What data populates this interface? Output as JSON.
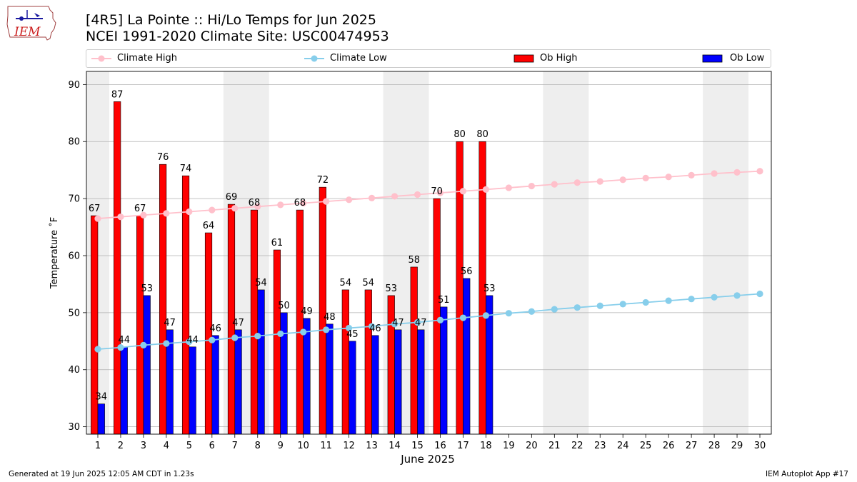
{
  "header": {
    "title_line1": "[4R5] La Pointe :: Hi/Lo Temps for Jun 2025",
    "title_line2": "NCEI 1991-2020 Climate Site: USC00474953",
    "logo_text": "IEM"
  },
  "legend": {
    "items": [
      {
        "label": "Climate High",
        "color": "#ffc0cb",
        "kind": "line"
      },
      {
        "label": "Climate Low",
        "color": "#87ceeb",
        "kind": "line"
      },
      {
        "label": "Ob High",
        "color": "#ff0000",
        "kind": "bar"
      },
      {
        "label": "Ob Low",
        "color": "#0000ff",
        "kind": "bar"
      }
    ]
  },
  "chart_data": {
    "type": "bar",
    "xlabel": "June 2025",
    "ylabel": "Temperature ˚F",
    "ylim": [
      28.7,
      92.3
    ],
    "yticks": [
      30,
      40,
      50,
      60,
      70,
      80,
      90
    ],
    "days": [
      1,
      2,
      3,
      4,
      5,
      6,
      7,
      8,
      9,
      10,
      11,
      12,
      13,
      14,
      15,
      16,
      17,
      18,
      19,
      20,
      21,
      22,
      23,
      24,
      25,
      26,
      27,
      28,
      29,
      30
    ],
    "weekend_shading": [
      [
        1,
        1
      ],
      [
        7,
        8
      ],
      [
        14,
        15
      ],
      [
        21,
        22
      ],
      [
        28,
        29
      ]
    ],
    "grid": "horizontal",
    "series": [
      {
        "name": "Ob High",
        "color": "#ff0000",
        "values": [
          67,
          87,
          67,
          76,
          74,
          64,
          69,
          68,
          61,
          68,
          72,
          54,
          54,
          53,
          58,
          70,
          80,
          80
        ],
        "value_labels": [
          "67",
          "87",
          "67",
          "76",
          "74",
          "64",
          "69",
          "68",
          "61",
          "68",
          "72",
          "54",
          "54",
          "53",
          "58",
          "70",
          "80",
          "80"
        ]
      },
      {
        "name": "Ob Low",
        "color": "#0000ff",
        "values": [
          34,
          44,
          53,
          47,
          44,
          46,
          47,
          54,
          50,
          49,
          48,
          45,
          46,
          47,
          47,
          51,
          56,
          53
        ],
        "value_labels": [
          "34",
          "44",
          "53",
          "47",
          "44",
          "46",
          "47",
          "54",
          "50",
          "49",
          "48",
          "45",
          "46",
          "47",
          "47",
          "51",
          "56",
          "53"
        ]
      },
      {
        "name": "Climate High",
        "color": "#ffc0cb",
        "values": [
          66.5,
          66.8,
          67.1,
          67.4,
          67.7,
          68.0,
          68.3,
          68.6,
          68.9,
          69.2,
          69.5,
          69.8,
          70.1,
          70.4,
          70.7,
          71.0,
          71.3,
          71.6,
          71.9,
          72.2,
          72.5,
          72.8,
          73.0,
          73.3,
          73.6,
          73.8,
          74.1,
          74.4,
          74.6,
          74.8
        ]
      },
      {
        "name": "Climate Low",
        "color": "#87ceeb",
        "values": [
          43.6,
          43.9,
          44.3,
          44.6,
          44.9,
          45.2,
          45.6,
          45.9,
          46.3,
          46.6,
          47.0,
          47.3,
          47.6,
          48.0,
          48.3,
          48.7,
          49.1,
          49.5,
          49.9,
          50.2,
          50.6,
          50.9,
          51.2,
          51.5,
          51.8,
          52.1,
          52.4,
          52.7,
          53.0,
          53.3
        ]
      }
    ]
  },
  "footer": {
    "left": "Generated at 19 Jun 2025 12:05 AM CDT in 1.23s",
    "right": "IEM Autoplot App #17"
  }
}
